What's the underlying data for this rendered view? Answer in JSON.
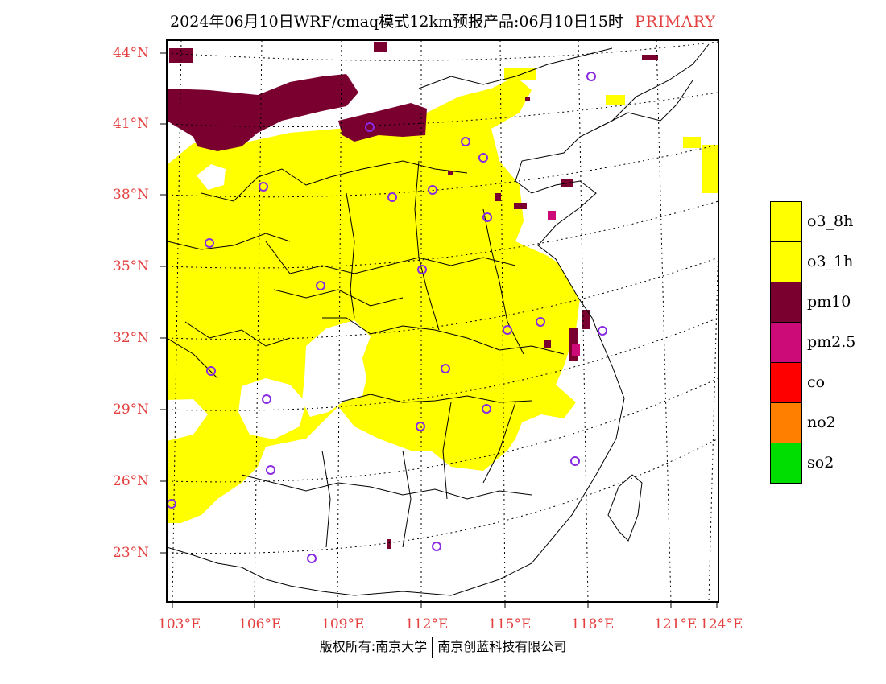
{
  "title": {
    "main": "2024年06月10日WRF/cmaq模式12km预报产品:06月10日15时",
    "tag": "PRIMARY"
  },
  "lat_labels": [
    "44°N",
    "41°N",
    "38°N",
    "35°N",
    "32°N",
    "29°N",
    "26°N",
    "23°N"
  ],
  "lon_labels": [
    "103°E",
    "106°E",
    "109°E",
    "112°E",
    "115°E",
    "118°E",
    "121°E",
    "124°E"
  ],
  "legend": [
    {
      "label": "o3_8h",
      "color": "#ffff00"
    },
    {
      "label": "o3_1h",
      "color": "#ffff00"
    },
    {
      "label": "pm10",
      "color": "#7a0030"
    },
    {
      "label": "pm2.5",
      "color": "#cc0a78"
    },
    {
      "label": "co",
      "color": "#ff0000"
    },
    {
      "label": "no2",
      "color": "#ff7f00"
    },
    {
      "label": "so2",
      "color": "#00dd00"
    }
  ],
  "colors": {
    "o3": "#ffff00",
    "pm10": "#7a0030",
    "pm25": "#cc0a78",
    "station": "#8a2be2",
    "boundary": "#000000",
    "grid": "#000000",
    "axis_label": "#e34040"
  },
  "footer": {
    "left": "版权所有:南京大学",
    "right": "南京创蓝科技有限公司"
  }
}
